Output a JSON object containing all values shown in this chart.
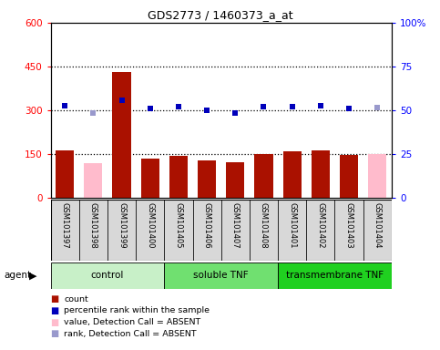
{
  "title": "GDS2773 / 1460373_a_at",
  "samples": [
    "GSM101397",
    "GSM101398",
    "GSM101399",
    "GSM101400",
    "GSM101405",
    "GSM101406",
    "GSM101407",
    "GSM101408",
    "GSM101401",
    "GSM101402",
    "GSM101403",
    "GSM101404"
  ],
  "bar_values": [
    162,
    120,
    430,
    135,
    143,
    128,
    122,
    150,
    158,
    162,
    148,
    150
  ],
  "bar_absent": [
    false,
    true,
    false,
    false,
    false,
    false,
    false,
    false,
    false,
    false,
    false,
    true
  ],
  "rank_values": [
    315,
    290,
    335,
    305,
    311,
    299,
    292,
    311,
    311,
    315,
    305,
    308
  ],
  "rank_absent": [
    false,
    true,
    false,
    false,
    false,
    false,
    false,
    false,
    false,
    false,
    false,
    true
  ],
  "ylim_left": [
    0,
    600
  ],
  "ylim_right": [
    0,
    100
  ],
  "yticks_left": [
    0,
    150,
    300,
    450,
    600
  ],
  "ytick_labels_left": [
    "0",
    "150",
    "300",
    "450",
    "600"
  ],
  "yticks_right": [
    0,
    25,
    50,
    75,
    100
  ],
  "ytick_labels_right": [
    "0",
    "25",
    "50",
    "75",
    "100%"
  ],
  "hlines": [
    150,
    300,
    450
  ],
  "groups": [
    {
      "label": "control",
      "start": 0,
      "end": 4,
      "color": "#c8f0c8"
    },
    {
      "label": "soluble TNF",
      "start": 4,
      "end": 8,
      "color": "#70e070"
    },
    {
      "label": "transmembrane TNF",
      "start": 8,
      "end": 12,
      "color": "#20d020"
    }
  ],
  "bar_color_present": "#aa1100",
  "bar_color_absent": "#ffbbcc",
  "rank_color_present": "#0000bb",
  "rank_color_absent": "#9999cc",
  "legend_items": [
    {
      "color": "#aa1100",
      "label": "count",
      "marker": "s"
    },
    {
      "color": "#0000bb",
      "label": "percentile rank within the sample",
      "marker": "s"
    },
    {
      "color": "#ffbbcc",
      "label": "value, Detection Call = ABSENT",
      "marker": "s"
    },
    {
      "color": "#9999cc",
      "label": "rank, Detection Call = ABSENT",
      "marker": "s"
    }
  ]
}
